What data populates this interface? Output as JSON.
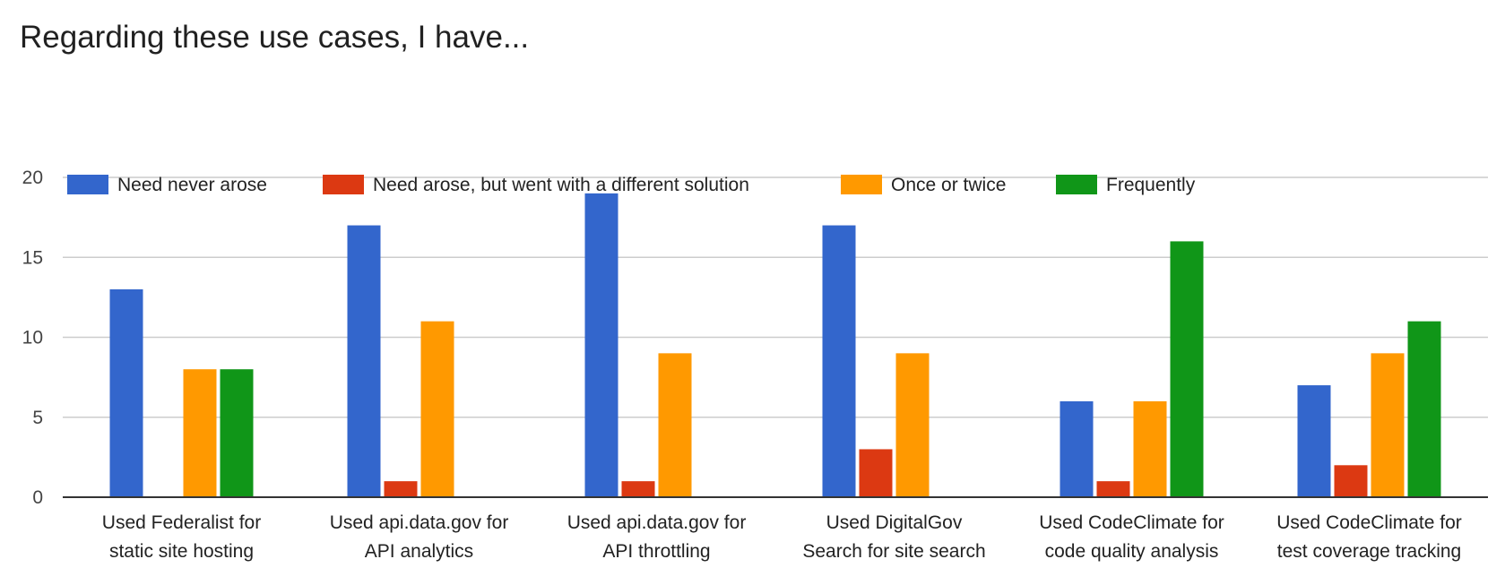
{
  "chart_data": {
    "type": "bar",
    "title": "Regarding these use cases, I have...",
    "xlabel": "",
    "ylabel": "",
    "ylim": [
      0,
      20
    ],
    "yticks": [
      0,
      5,
      10,
      15,
      20
    ],
    "grid": true,
    "legend": "top",
    "categories": [
      [
        "Used Federalist for",
        "static site hosting"
      ],
      [
        "Used api.data.gov for",
        "API analytics"
      ],
      [
        "Used api.data.gov for",
        "API throttling"
      ],
      [
        "Used DigitalGov",
        "Search for site search"
      ],
      [
        "Used CodeClimate for",
        "code quality analysis"
      ],
      [
        "Used CodeClimate for",
        "test coverage tracking"
      ]
    ],
    "series": [
      {
        "name": "Need never arose",
        "color": "#3366cc",
        "values": [
          13,
          17,
          19,
          17,
          6,
          7
        ]
      },
      {
        "name": "Need arose, but went with a different solution",
        "color": "#dc3912",
        "values": [
          0,
          1,
          1,
          3,
          1,
          2
        ]
      },
      {
        "name": "Once or twice",
        "color": "#ff9900",
        "values": [
          8,
          11,
          9,
          9,
          6,
          9
        ]
      },
      {
        "name": "Frequently",
        "color": "#109618",
        "values": [
          8,
          0,
          0,
          0,
          16,
          11
        ]
      }
    ]
  }
}
